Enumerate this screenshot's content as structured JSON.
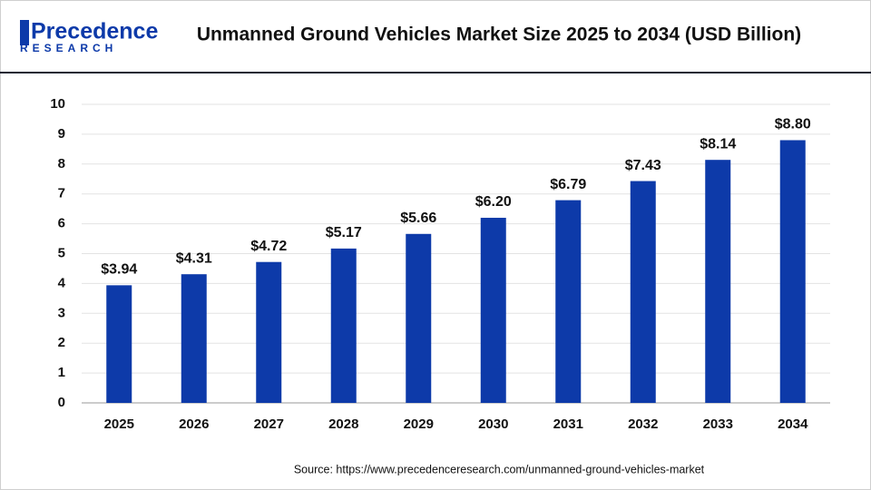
{
  "logo": {
    "name": "Precedence",
    "tagline": "RESEARCH"
  },
  "chart_data": {
    "type": "bar",
    "title": "Unmanned Ground Vehicles Market Size 2025 to 2034 (USD Billion)",
    "categories": [
      "2025",
      "2026",
      "2027",
      "2028",
      "2029",
      "2030",
      "2031",
      "2032",
      "2033",
      "2034"
    ],
    "values": [
      3.94,
      4.31,
      4.72,
      5.17,
      5.66,
      6.2,
      6.79,
      7.43,
      8.14,
      8.8
    ],
    "value_labels": [
      "$3.94",
      "$4.31",
      "$4.72",
      "$5.17",
      "$5.66",
      "$6.20",
      "$6.79",
      "$7.43",
      "$8.14",
      "$8.80"
    ],
    "color": "#0d3aa9",
    "ylim": [
      0,
      10
    ],
    "yticks": [
      0,
      1,
      2,
      3,
      4,
      5,
      6,
      7,
      8,
      9,
      10
    ],
    "grid": true,
    "source": "Source: https://www.precedenceresearch.com/unmanned-ground-vehicles-market"
  }
}
